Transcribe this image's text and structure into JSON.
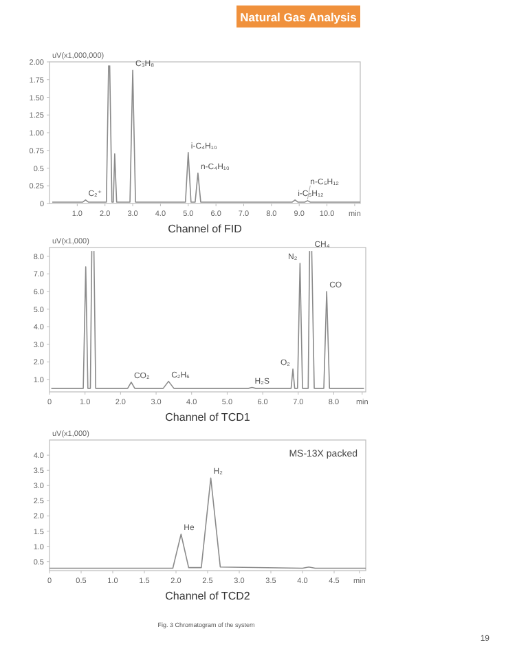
{
  "chart_data": [
    {
      "type": "line",
      "title": "Natural Gas Analysis",
      "ylabel": "uV(x1,000,000)",
      "xlabel": "Channel of FID",
      "xlim": [
        0,
        11.2
      ],
      "ylim": [
        0,
        2.0
      ],
      "xticks": [
        {
          "value": 1,
          "label": "1.0"
        },
        {
          "value": 2,
          "label": "2.0"
        },
        {
          "value": 3,
          "label": "3.0"
        },
        {
          "value": 4,
          "label": "4.0"
        },
        {
          "value": 5,
          "label": "5.0"
        },
        {
          "value": 6,
          "label": "6.0"
        },
        {
          "value": 7,
          "label": "7.0"
        },
        {
          "value": 8,
          "label": "8.0"
        },
        {
          "value": 9,
          "label": "9.0"
        },
        {
          "value": 10,
          "label": "10.0"
        },
        {
          "value": 11,
          "label": "min"
        }
      ],
      "yticks": [
        0,
        0.25,
        0.5,
        0.75,
        {
          "value": 1,
          "label": "1.00"
        },
        1.25,
        {
          "value": 1.5,
          "label": "1.50"
        },
        1.75,
        {
          "value": 2,
          "label": "2.00"
        }
      ],
      "series": [
        {
          "color": "#8a8a8a",
          "x": [
            0.1,
            1.2,
            1.3,
            1.4,
            2.05,
            2.13,
            2.15,
            2.17,
            2.25,
            2.3,
            2.35,
            2.42,
            2.9,
            3.0,
            3.1,
            4.9,
            5.0,
            5.1,
            5.25,
            5.35,
            5.45,
            8.75,
            8.85,
            8.95,
            9.2,
            9.3,
            9.4,
            11.2
          ],
          "values": [
            0.02,
            0.02,
            0.05,
            0.02,
            0.02,
            1.95,
            null,
            1.95,
            0.02,
            0.02,
            0.7,
            0.02,
            0.02,
            1.88,
            0.02,
            0.02,
            0.72,
            0.02,
            0.02,
            0.43,
            0.02,
            0.02,
            0.05,
            0.02,
            0.02,
            0.04,
            0.02,
            0.02
          ]
        }
      ],
      "annotations": [
        {
          "text": "C₂⁺",
          "x": 1.3,
          "y": 0.05
        },
        {
          "text": "C₃H₈",
          "x": 3.0,
          "y": 1.88
        },
        {
          "text": "i-C₄H₁₀",
          "x": 5.0,
          "y": 0.72
        },
        {
          "text": "n-C₄H₁₀",
          "x": 5.35,
          "y": 0.43
        },
        {
          "text": "i-C₅H₁₂",
          "x": 8.85,
          "y": 0.05
        },
        {
          "text": "n-C₅H₁₂",
          "x": 9.3,
          "y": 0.04
        }
      ],
      "grid": false
    },
    {
      "type": "line",
      "ylabel": "uV(x1,000)",
      "xlabel": "Channel of TCD1",
      "xlim": [
        0,
        8.9
      ],
      "ylim": [
        0.3,
        8.5
      ],
      "xticks": [
        0,
        {
          "value": 1,
          "label": "1.0"
        },
        {
          "value": 2,
          "label": "2.0"
        },
        {
          "value": 3,
          "label": "3.0"
        },
        {
          "value": 4,
          "label": "4.0"
        },
        {
          "value": 5,
          "label": "5.0"
        },
        {
          "value": 6,
          "label": "6.0"
        },
        {
          "value": 7,
          "label": "7.0"
        },
        {
          "value": 8,
          "label": "8.0"
        },
        {
          "value": 8.8,
          "label": "min"
        }
      ],
      "yticks": [
        {
          "value": 1,
          "label": "1.0"
        },
        {
          "value": 2,
          "label": "2.0"
        },
        {
          "value": 3,
          "label": "3.0"
        },
        {
          "value": 4,
          "label": "4.0"
        },
        {
          "value": 5,
          "label": "5.0"
        },
        {
          "value": 6,
          "label": "6.0"
        },
        {
          "value": 7,
          "label": "7.0"
        },
        {
          "value": 8,
          "label": "8.0"
        }
      ],
      "series": [
        {
          "color": "#8a8a8a",
          "x": [
            0.05,
            0.95,
            1.02,
            1.08,
            1.15,
            1.19,
            1.22,
            1.25,
            1.3,
            2.2,
            2.3,
            2.4,
            3.2,
            3.35,
            3.5,
            5.6,
            5.7,
            5.8,
            6.8,
            6.85,
            6.9,
            6.98,
            7.05,
            7.12,
            7.28,
            7.32,
            7.35,
            7.38,
            7.45,
            7.72,
            7.8,
            7.88,
            8.85
          ],
          "values": [
            0.5,
            0.5,
            7.4,
            0.5,
            0.5,
            8.3,
            null,
            8.3,
            0.5,
            0.5,
            0.85,
            0.5,
            0.5,
            0.9,
            0.5,
            0.5,
            0.55,
            0.5,
            0.5,
            1.6,
            0.5,
            0.5,
            7.6,
            0.5,
            0.5,
            8.3,
            null,
            8.3,
            0.5,
            0.5,
            6.0,
            0.5,
            0.5
          ]
        }
      ],
      "annotations": [
        {
          "text": "CO₂",
          "x": 2.3,
          "y": 0.85
        },
        {
          "text": "C₂H₆",
          "x": 3.35,
          "y": 0.9
        },
        {
          "text": "H₂S",
          "x": 5.7,
          "y": 0.55
        },
        {
          "text": "O₂",
          "x": 6.85,
          "y": 1.6
        },
        {
          "text": "N₂",
          "x": 7.05,
          "y": 7.6
        },
        {
          "text": "CH₄",
          "x": 7.38,
          "y": 8.3
        },
        {
          "text": "CO",
          "x": 7.8,
          "y": 6.0
        }
      ],
      "grid": false
    },
    {
      "type": "line",
      "ylabel": "uV(x1,000)",
      "xlabel": "Channel of TCD2",
      "xlim": [
        0,
        5.0
      ],
      "ylim": [
        0.2,
        4.5
      ],
      "xticks": [
        0,
        0.5,
        {
          "value": 1,
          "label": "1.0"
        },
        1.5,
        {
          "value": 2,
          "label": "2.0"
        },
        2.5,
        {
          "value": 3,
          "label": "3.0"
        },
        3.5,
        {
          "value": 4,
          "label": "4.0"
        },
        4.5,
        {
          "value": 4.9,
          "label": "min"
        }
      ],
      "yticks": [
        0.5,
        {
          "value": 1,
          "label": "1.0"
        },
        1.5,
        {
          "value": 2,
          "label": "2.0"
        },
        2.5,
        {
          "value": 3,
          "label": "3.0"
        },
        3.5,
        {
          "value": 4,
          "label": "4.0"
        }
      ],
      "series": [
        {
          "color": "#8a8a8a",
          "x": [
            0,
            1.95,
            2.08,
            2.2,
            2.4,
            2.55,
            2.7,
            4.0,
            4.1,
            4.2,
            5.0
          ],
          "values": [
            0.28,
            0.28,
            1.4,
            0.3,
            0.3,
            3.25,
            0.32,
            0.28,
            0.32,
            0.28,
            0.28
          ]
        }
      ],
      "annotations": [
        "MS-13X packed",
        {
          "text": "He",
          "x": 2.08,
          "y": 1.4
        },
        {
          "text": "H₂",
          "x": 2.55,
          "y": 3.25
        },
        "Fig. 3   Chromatogram of the system",
        "19"
      ],
      "grid": false
    }
  ]
}
